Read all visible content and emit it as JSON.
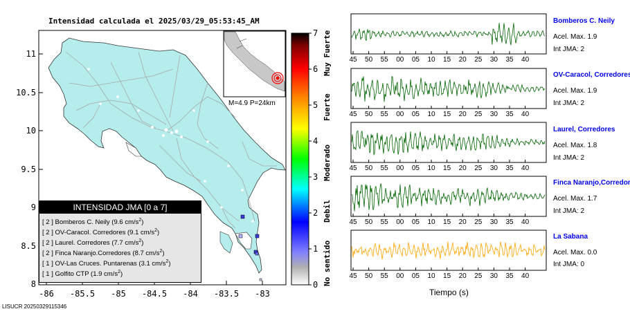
{
  "map": {
    "title": "Intensidad calculada el 2025/03/29_05:53:45_AM",
    "y_tick_labels": [
      "11",
      "10.5",
      "10",
      "9.5",
      "9",
      "8.5",
      "8"
    ],
    "x_tick_labels": [
      "-86",
      "-85.5",
      "-85",
      "-84.5",
      "-84",
      "-83.5",
      "-83"
    ],
    "inset_caption": "M=4.9 P=24km",
    "land_color": "#b5eded",
    "inset_land_color": "#c8c8c8"
  },
  "legend": {
    "title": "INTENSIDAD JMA [0 a 7]",
    "items": [
      {
        "label": "[ 2 ]  Bomberos C. Neily (9.6 cm/s",
        "sup": "2",
        "tail": ")"
      },
      {
        "label": "[ 2 ]  OV-Caracol. Corredores (9.1 cm/s",
        "sup": "2",
        "tail": ")"
      },
      {
        "label": "[ 2 ]  Laurel. Corredores (7.7 cm/s",
        "sup": "2",
        "tail": ")"
      },
      {
        "label": "[ 2 ]  Finca Naranjo.Corredores (8.7 cm/s",
        "sup": "2",
        "tail": ")"
      },
      {
        "label": "[ 1 ]  OV-Las Cruces. Puntarenas (3.1 cm/s",
        "sup": "2",
        "tail": ")"
      },
      {
        "label": "[ 1 ]  Golfito CTP (1.9 cm/s",
        "sup": "2",
        "tail": ")"
      }
    ]
  },
  "colorbar": {
    "numbers": [
      "7",
      "6",
      "5",
      "4",
      "3",
      "2",
      "1",
      "0"
    ],
    "words": [
      "Muy Fuerte",
      "Fuerte",
      "Moderado",
      "Debil",
      "No sentido"
    ]
  },
  "stations": [
    {
      "name": "Bomberos C. Neily",
      "accel": "Acel. Max. 1.9",
      "int": "Int JMA: 2",
      "color": "#006400",
      "amp": 0.45
    },
    {
      "name": "OV-Caracol, Corredores",
      "accel": "Acel. Max. 1.9",
      "int": "Int JMA: 2",
      "color": "#006400",
      "amp": 0.8
    },
    {
      "name": "Laurel, Corredores",
      "accel": "Acel. Max. 1.8",
      "int": "Int JMA: 2",
      "color": "#006400",
      "amp": 0.75
    },
    {
      "name": "Finca Naranjo,Corredores",
      "accel": "Acel. Max. 1.7",
      "int": "Int JMA: 2",
      "color": "#006400",
      "amp": 0.75
    },
    {
      "name": "La Sabana",
      "accel": "Acel. Max. 0.0",
      "int": "Int JMA: 0",
      "color": "#ffa500",
      "amp": 0.6
    }
  ],
  "seismo_ticks": [
    "45",
    "50",
    "55",
    "00",
    "05",
    "10",
    "15",
    "20",
    "25",
    "30",
    "35",
    "40"
  ],
  "seismo_xlabel": "Tiempo (s)",
  "footer": "LISUCR 20250329115346"
}
